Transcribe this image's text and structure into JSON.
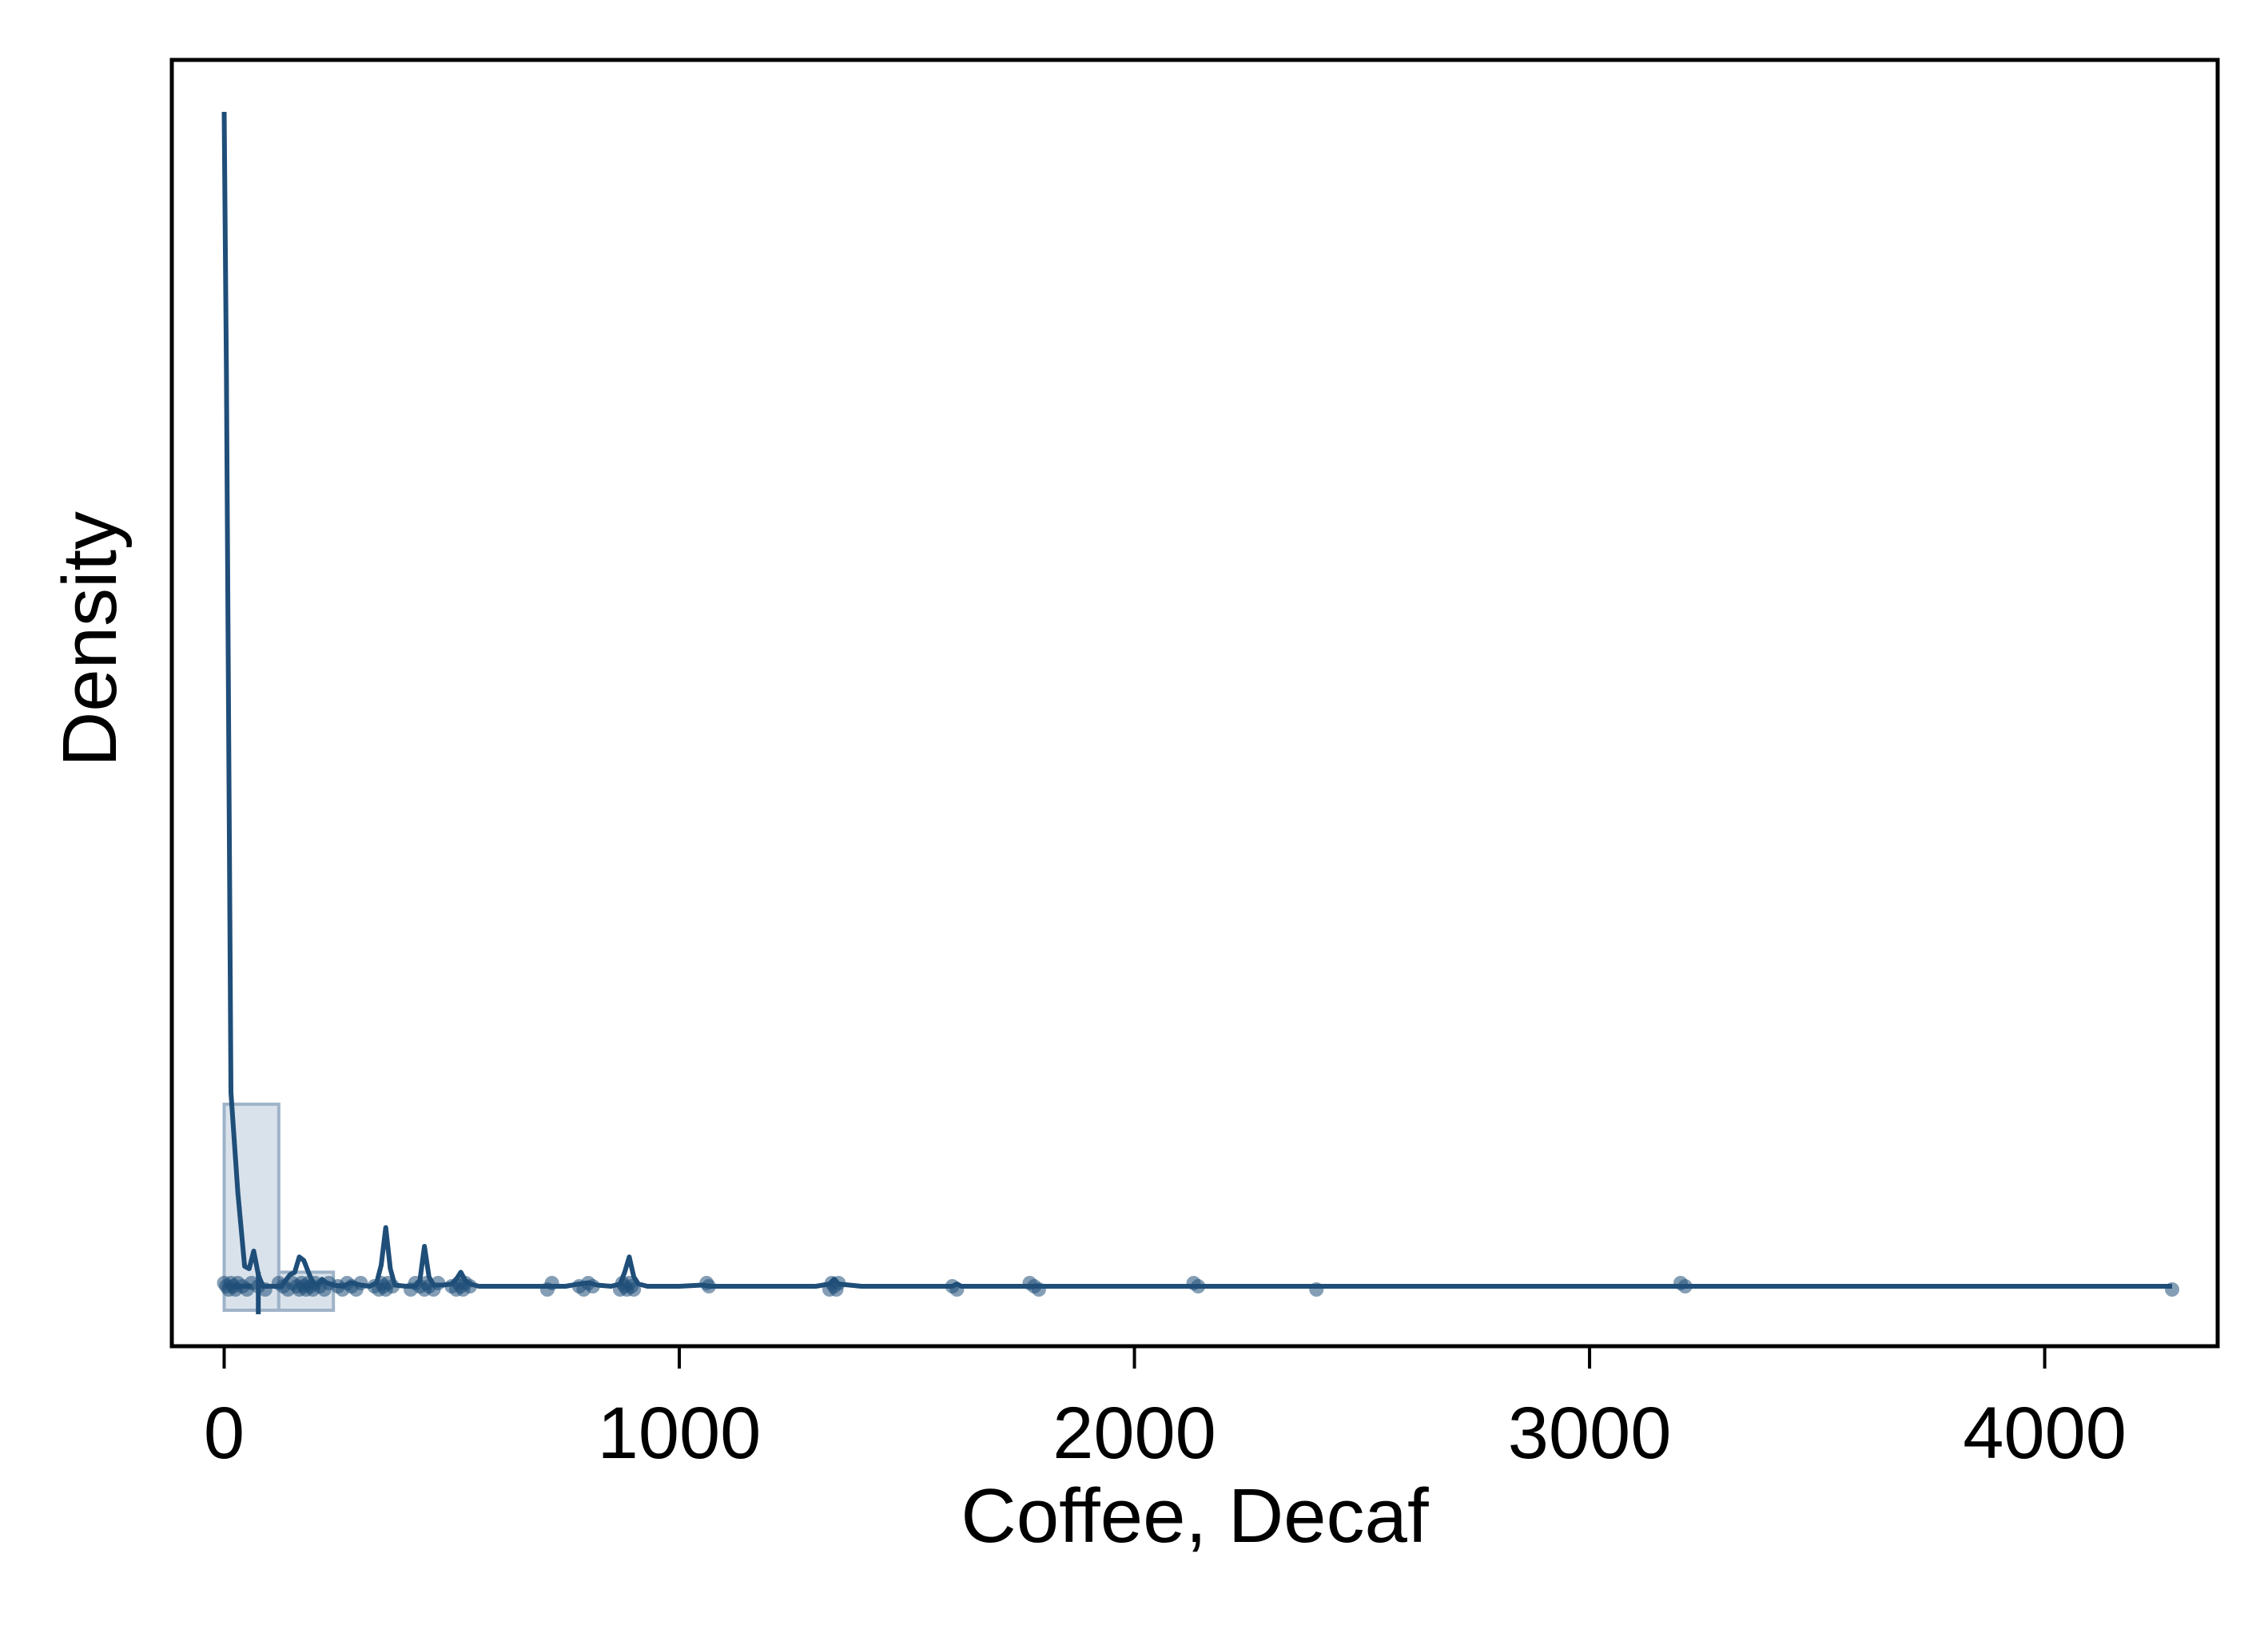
{
  "chart_data": {
    "type": "area",
    "xlabel": "Coffee, Decaf",
    "ylabel": "Density",
    "xlim": [
      -115,
      4380
    ],
    "xticks": [
      0,
      1000,
      2000,
      3000,
      4000
    ],
    "xtick_labels": [
      "0",
      "1000",
      "2000",
      "3000",
      "4000"
    ],
    "yticks_shown": false,
    "grid": false,
    "legend": "none",
    "colors": {
      "line": "#1f4e79",
      "points": "#1f4e79",
      "hist_fill": "#c9d6e3",
      "hist_stroke": "#9fb3c8"
    },
    "density_curve": {
      "x": [
        0,
        5,
        15,
        30,
        45,
        55,
        65,
        75,
        85,
        95,
        105,
        115,
        125,
        135,
        145,
        155,
        165,
        175,
        185,
        195,
        205,
        215,
        225,
        240,
        260,
        280,
        300,
        320,
        335,
        345,
        355,
        365,
        375,
        400,
        420,
        430,
        440,
        450,
        460,
        480,
        500,
        510,
        520,
        530,
        540,
        560,
        600,
        650,
        700,
        750,
        780,
        800,
        820,
        850,
        870,
        880,
        890,
        900,
        910,
        930,
        1000,
        1050,
        1070,
        1100,
        1200,
        1300,
        1330,
        1340,
        1350,
        1400,
        1500,
        1600,
        1610,
        1620,
        1700,
        1800,
        1900,
        2000,
        2100,
        2140,
        2200,
        2300,
        2400,
        2500,
        3000,
        3200,
        3210,
        3220,
        3300,
        4000,
        4280
      ],
      "y": [
        1.0,
        0.78,
        0.165,
        0.08,
        0.017,
        0.015,
        0.03,
        0.01,
        0.0,
        0.0,
        0.0,
        0.0,
        0.0,
        0.005,
        0.01,
        0.012,
        0.025,
        0.022,
        0.012,
        0.003,
        0.001,
        0.006,
        0.003,
        0.001,
        0.0,
        0.003,
        0.001,
        0.0,
        0.003,
        0.018,
        0.05,
        0.015,
        0.001,
        0.0,
        0.0,
        0.005,
        0.034,
        0.008,
        0.001,
        0.001,
        0.002,
        0.006,
        0.012,
        0.005,
        0.002,
        0.0,
        0.0,
        0.0,
        0.0,
        0.0,
        0.002,
        0.003,
        0.001,
        0.0,
        0.002,
        0.012,
        0.025,
        0.008,
        0.002,
        0.0,
        0.0,
        0.001,
        0.0,
        0.0,
        0.0,
        0.0,
        0.002,
        0.006,
        0.002,
        0.0,
        0.0,
        0.0,
        0.002,
        0.0,
        0.0,
        0.0,
        0.0,
        0.0,
        0.0,
        0.0,
        0.0,
        0.0,
        0.0,
        0.0,
        0.0,
        0.0,
        0.0,
        0.0,
        0.0,
        0.0,
        0.0
      ]
    },
    "histogram": {
      "bins": [
        [
          0,
          120
        ],
        [
          120,
          240
        ]
      ],
      "density": [
        0.155,
        0.012
      ]
    },
    "rug_points_x": [
      0,
      5,
      10,
      15,
      20,
      25,
      30,
      40,
      50,
      60,
      75,
      90,
      120,
      130,
      140,
      150,
      160,
      165,
      170,
      175,
      180,
      185,
      190,
      195,
      200,
      210,
      220,
      230,
      250,
      260,
      270,
      280,
      290,
      300,
      330,
      340,
      345,
      350,
      355,
      360,
      370,
      410,
      420,
      430,
      440,
      445,
      450,
      460,
      470,
      500,
      510,
      515,
      520,
      525,
      530,
      540,
      710,
      720,
      780,
      790,
      800,
      810,
      870,
      875,
      880,
      885,
      890,
      895,
      900,
      1060,
      1065,
      1330,
      1335,
      1340,
      1345,
      1350,
      1600,
      1610,
      1770,
      1780,
      1790,
      2130,
      2140,
      2400,
      3200,
      3210,
      4280
    ]
  }
}
